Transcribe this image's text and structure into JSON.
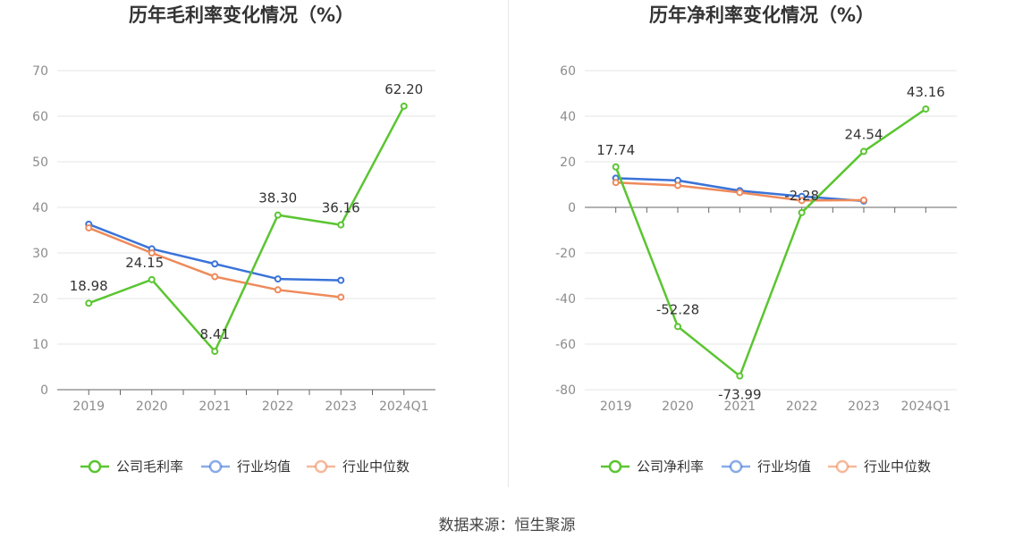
{
  "source_label": "数据来源：恒生聚源",
  "colors": {
    "company": "#5ac531",
    "industry_avg": "#3a73d8",
    "industry_median": "#ef8a5a"
  },
  "chart_data": [
    {
      "type": "line",
      "title": "历年毛利率变化情况（%）",
      "categories": [
        "2019",
        "2020",
        "2021",
        "2022",
        "2023",
        "2024Q1"
      ],
      "ylim": [
        0,
        70
      ],
      "yticks": [
        0,
        10,
        20,
        30,
        40,
        50,
        60,
        70
      ],
      "grid": true,
      "legend_position": "bottom-center",
      "series": [
        {
          "name": "公司毛利率",
          "values": [
            18.98,
            24.15,
            8.41,
            38.3,
            36.16,
            62.2
          ],
          "labels": [
            "18.98",
            "24.15",
            "8.41",
            "38.30",
            "36.16",
            "62.20"
          ]
        },
        {
          "name": "行业均值",
          "values": [
            36.3,
            30.9,
            27.6,
            24.3,
            24.0,
            null
          ]
        },
        {
          "name": "行业中位数",
          "values": [
            35.5,
            30.0,
            24.8,
            21.9,
            20.3,
            null
          ]
        }
      ]
    },
    {
      "type": "line",
      "title": "历年净利率变化情况（%）",
      "categories": [
        "2019",
        "2020",
        "2021",
        "2022",
        "2023",
        "2024Q1"
      ],
      "ylim": [
        -80,
        60
      ],
      "yticks": [
        -80,
        -60,
        -40,
        -20,
        0,
        20,
        40,
        60
      ],
      "grid": true,
      "legend_position": "bottom-center",
      "series": [
        {
          "name": "公司净利率",
          "values": [
            17.74,
            -52.28,
            -73.99,
            -2.28,
            24.54,
            43.16
          ],
          "labels": [
            "17.74",
            "-52.28",
            "-73.99",
            "-2.28",
            "24.54",
            "43.16"
          ]
        },
        {
          "name": "行业均值",
          "values": [
            12.8,
            11.8,
            7.3,
            4.8,
            2.8,
            null
          ]
        },
        {
          "name": "行业中位数",
          "values": [
            10.9,
            9.6,
            6.5,
            3.0,
            3.2,
            null
          ]
        }
      ]
    }
  ]
}
